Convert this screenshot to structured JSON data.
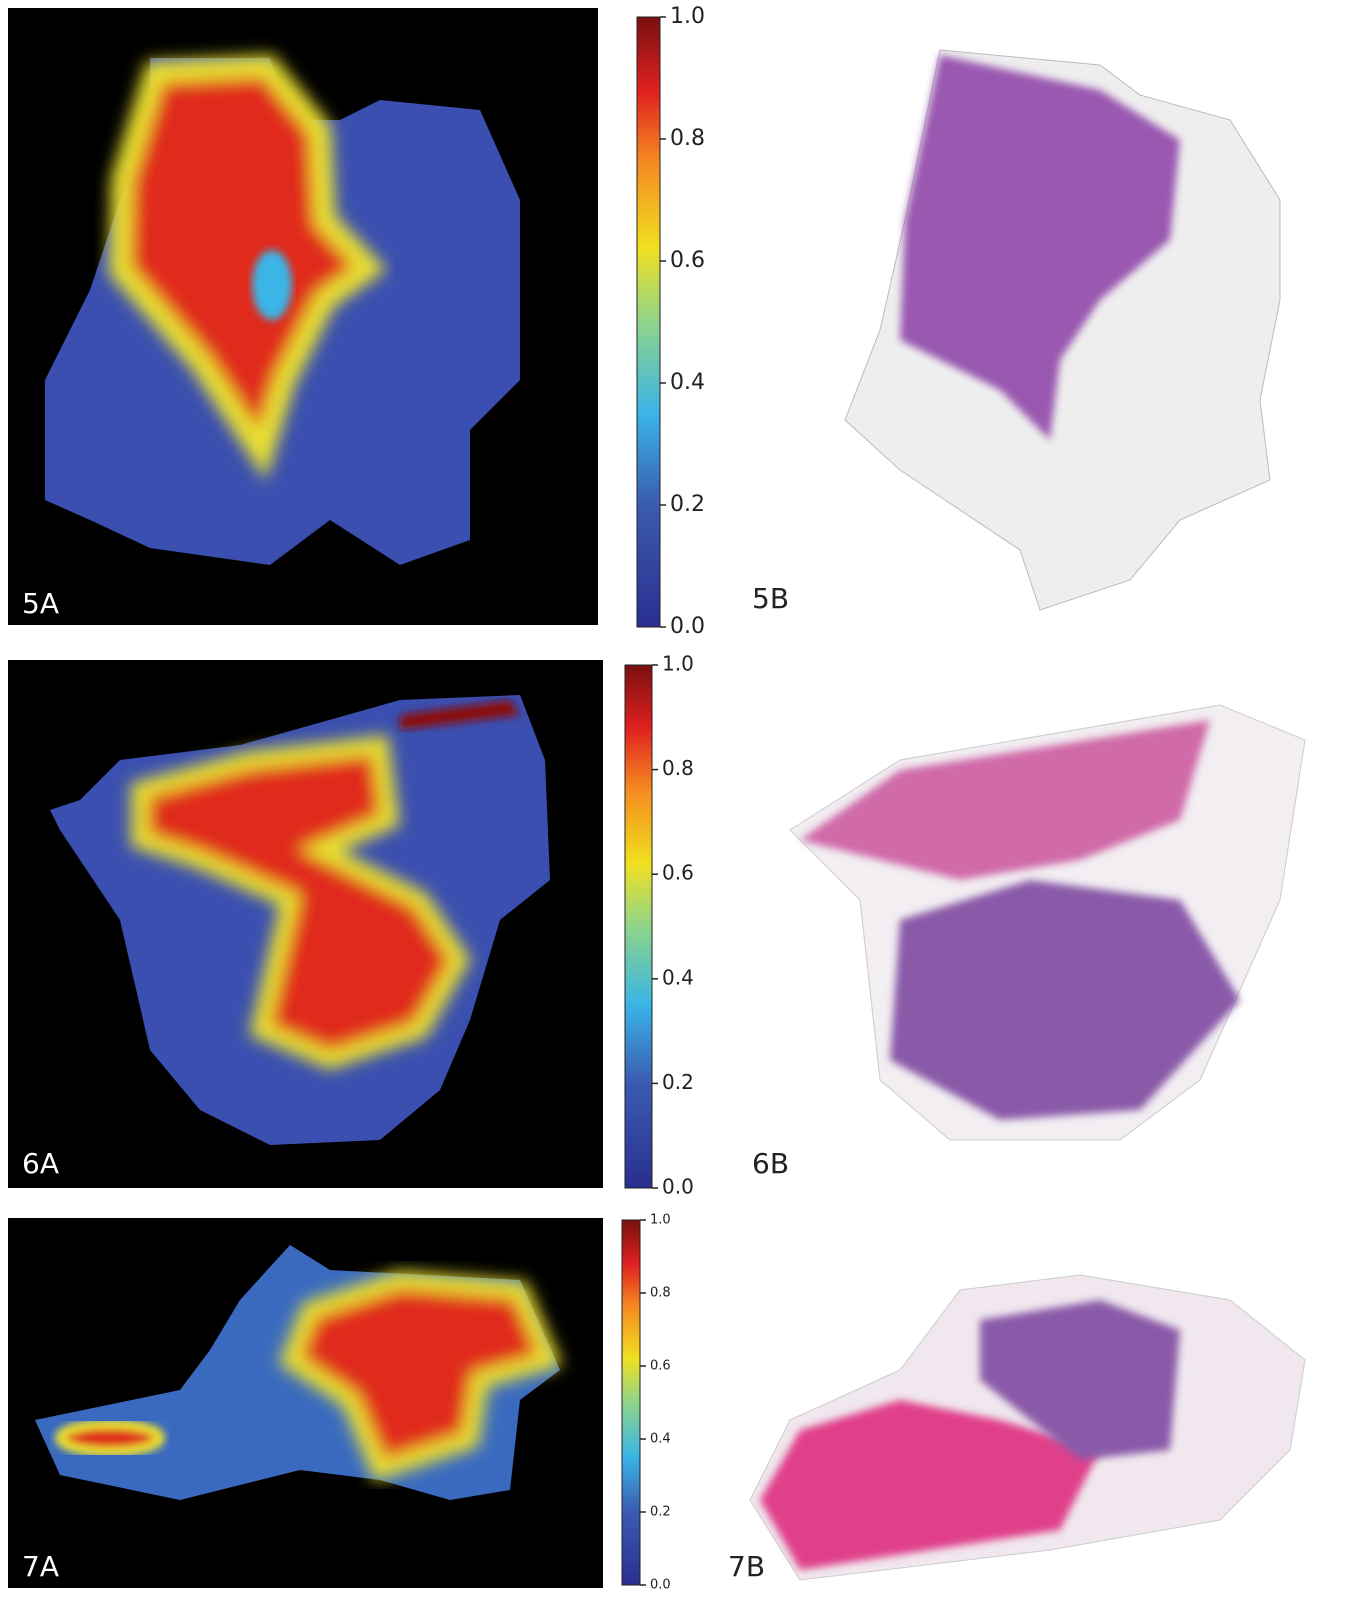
{
  "figures": [
    {
      "heatmap_label": "5A",
      "slide_label": "5B",
      "colorbar_ticks": [
        {
          "value": 0,
          "label": "0.0"
        },
        {
          "value": 0.2,
          "label": "0.2"
        },
        {
          "value": 0.4,
          "label": "0.4"
        },
        {
          "value": 0.6,
          "label": "0.6"
        },
        {
          "value": 0.8,
          "label": "0.8"
        },
        {
          "value": 1,
          "label": "1.0"
        }
      ]
    },
    {
      "heatmap_label": "6A",
      "slide_label": "6B",
      "colorbar_ticks": [
        {
          "value": 0,
          "label": "0.0"
        },
        {
          "value": 0.2,
          "label": "0.2"
        },
        {
          "value": 0.4,
          "label": "0.4"
        },
        {
          "value": 0.6,
          "label": "0.6"
        },
        {
          "value": 0.8,
          "label": "0.8"
        },
        {
          "value": 1,
          "label": "1.0"
        }
      ]
    },
    {
      "heatmap_label": "7A",
      "slide_label": "7B",
      "colorbar_ticks": [
        {
          "value": 0,
          "label": "0.0"
        },
        {
          "value": 0.2,
          "label": "0.2"
        },
        {
          "value": 0.4,
          "label": "0.4"
        },
        {
          "value": 0.6,
          "label": "0.6"
        },
        {
          "value": 0.8,
          "label": "0.8"
        },
        {
          "value": 1,
          "label": "1.0"
        }
      ]
    }
  ]
}
